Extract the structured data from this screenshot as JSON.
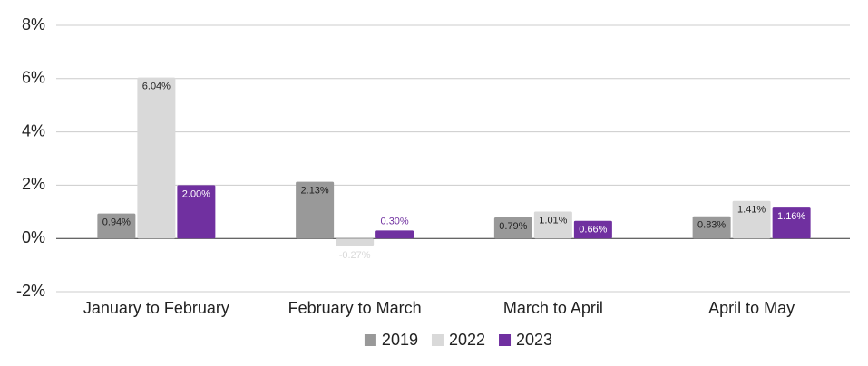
{
  "chart_data": {
    "type": "bar",
    "categories": [
      "January to February",
      "February to March",
      "March to April",
      "April to May"
    ],
    "series": [
      {
        "name": "2019",
        "color": "#999999",
        "values": [
          0.94,
          2.13,
          0.79,
          0.83
        ],
        "value_labels": [
          "0.94%",
          "2.13%",
          "0.79%",
          "0.83%"
        ]
      },
      {
        "name": "2022",
        "color": "#d9d9d9",
        "values": [
          6.04,
          -0.27,
          1.01,
          1.41
        ],
        "value_labels": [
          "6.04%",
          "-0.27%",
          "1.01%",
          "1.41%"
        ]
      },
      {
        "name": "2023",
        "color": "#7030a0",
        "values": [
          2.0,
          0.3,
          0.66,
          1.16
        ],
        "value_labels": [
          "2.00%",
          "0.30%",
          "0.66%",
          "1.16%"
        ]
      }
    ],
    "ylim": [
      -2,
      8
    ],
    "yticks": [
      {
        "value": -2,
        "label": "-2%"
      },
      {
        "value": 0,
        "label": "0%"
      },
      {
        "value": 2,
        "label": "2%"
      },
      {
        "value": 4,
        "label": "4%"
      },
      {
        "value": 6,
        "label": "6%"
      },
      {
        "value": 8,
        "label": "8%"
      }
    ],
    "grid": true,
    "legend": "bottom"
  }
}
